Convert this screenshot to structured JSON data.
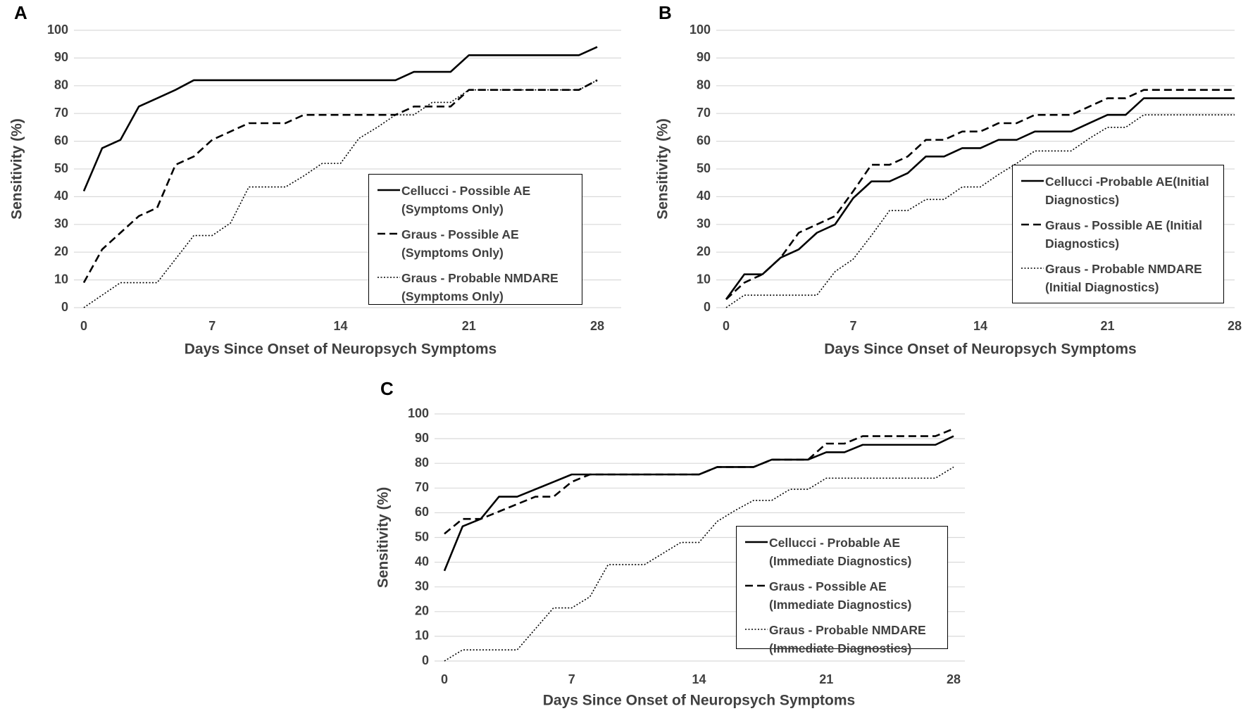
{
  "chart_data": [
    {
      "type": "line",
      "panel": "A",
      "xlabel": "Days Since Onset of Neuropsych Symptoms",
      "ylabel": "Sensitivity (%)",
      "x": [
        0,
        1,
        2,
        3,
        4,
        5,
        6,
        7,
        8,
        9,
        10,
        11,
        12,
        13,
        14,
        15,
        16,
        17,
        18,
        19,
        20,
        21,
        22,
        23,
        24,
        25,
        26,
        27,
        28
      ],
      "xlim": [
        0,
        28
      ],
      "xticks": [
        0,
        7,
        14,
        21,
        28
      ],
      "ylim": [
        0,
        100
      ],
      "yticks": [
        0,
        10,
        20,
        30,
        40,
        50,
        60,
        70,
        80,
        90,
        100
      ],
      "grid": true,
      "series": [
        {
          "name": "Cellucci - Possible AE (Symptoms Only)",
          "color": "#000000",
          "style": "solid",
          "values": [
            42,
            57.5,
            60.5,
            72.5,
            75.5,
            78.5,
            82,
            82,
            82,
            82,
            82,
            82,
            82,
            82,
            82,
            82,
            82,
            82,
            85,
            85,
            85,
            91,
            91,
            91,
            91,
            91,
            91,
            91,
            94
          ]
        },
        {
          "name": "Graus - Possible AE (Symptoms Only)",
          "color": "#000000",
          "style": "dashed",
          "values": [
            9,
            21,
            27,
            33,
            36,
            51.5,
            54.5,
            60.5,
            63.5,
            66.5,
            66.5,
            66.5,
            69.5,
            69.5,
            69.5,
            69.5,
            69.5,
            69.5,
            72.5,
            72.5,
            72.5,
            78.5,
            78.5,
            78.5,
            78.5,
            78.5,
            78.5,
            78.5,
            82
          ]
        },
        {
          "name": "Graus - Probable NMDARE (Symptoms Only)",
          "color": "#000000",
          "style": "dotted",
          "values": [
            0,
            4.5,
            9,
            9,
            9,
            17.5,
            26,
            26,
            30.5,
            43.5,
            43.5,
            43.5,
            47.5,
            52,
            52,
            61,
            65,
            69.5,
            69.5,
            74,
            74,
            78.5,
            78.5,
            78.5,
            78.5,
            78.5,
            78.5,
            78.5,
            82
          ]
        }
      ]
    },
    {
      "type": "line",
      "panel": "B",
      "xlabel": "Days Since Onset of Neuropsych Symptoms",
      "ylabel": "Sensitivity (%)",
      "x": [
        0,
        1,
        2,
        3,
        4,
        5,
        6,
        7,
        8,
        9,
        10,
        11,
        12,
        13,
        14,
        15,
        16,
        17,
        18,
        19,
        20,
        21,
        22,
        23,
        24,
        25,
        26,
        27,
        28
      ],
      "xlim": [
        0,
        28
      ],
      "xticks": [
        0,
        7,
        14,
        21,
        28
      ],
      "ylim": [
        0,
        100
      ],
      "yticks": [
        0,
        10,
        20,
        30,
        40,
        50,
        60,
        70,
        80,
        90,
        100
      ],
      "grid": true,
      "series": [
        {
          "name": "Cellucci -Probable AE(Initial Diagnostics)",
          "color": "#000000",
          "style": "solid",
          "values": [
            3,
            12,
            12,
            18,
            21,
            27,
            30,
            39.5,
            45.5,
            45.5,
            48.5,
            54.5,
            54.5,
            57.5,
            57.5,
            60.5,
            60.5,
            63.5,
            63.5,
            63.5,
            66.5,
            69.5,
            69.5,
            75.5,
            75.5,
            75.5,
            75.5,
            75.5,
            75.5
          ]
        },
        {
          "name": "Graus - Possible AE (Initial Diagnostics)",
          "color": "#000000",
          "style": "dashed",
          "values": [
            3,
            9,
            12,
            18,
            27,
            30,
            33,
            42,
            51.5,
            51.5,
            54.5,
            60.5,
            60.5,
            63.5,
            63.5,
            66.5,
            66.5,
            69.5,
            69.5,
            69.5,
            72.5,
            75.5,
            75.5,
            78.5,
            78.5,
            78.5,
            78.5,
            78.5,
            78.5
          ]
        },
        {
          "name": "Graus - Probable NMDARE (Initial Diagnostics)",
          "color": "#000000",
          "style": "dotted",
          "values": [
            0,
            4.5,
            4.5,
            4.5,
            4.5,
            4.5,
            13,
            17.5,
            26,
            35,
            35,
            39,
            39,
            43.5,
            43.5,
            48,
            52,
            56.5,
            56.5,
            56.5,
            61,
            65,
            65,
            69.5,
            69.5,
            69.5,
            69.5,
            69.5,
            69.5
          ]
        }
      ]
    },
    {
      "type": "line",
      "panel": "C",
      "xlabel": "Days Since Onset of Neuropsych Symptoms",
      "ylabel": "Sensitivity (%)",
      "x": [
        0,
        1,
        2,
        3,
        4,
        5,
        6,
        7,
        8,
        9,
        10,
        11,
        12,
        13,
        14,
        15,
        16,
        17,
        18,
        19,
        20,
        21,
        22,
        23,
        24,
        25,
        26,
        27,
        28
      ],
      "xlim": [
        0,
        28
      ],
      "xticks": [
        0,
        7,
        14,
        21,
        28
      ],
      "ylim": [
        0,
        100
      ],
      "yticks": [
        0,
        10,
        20,
        30,
        40,
        50,
        60,
        70,
        80,
        90,
        100
      ],
      "grid": true,
      "series": [
        {
          "name": "Cellucci - Probable AE (Immediate Diagnostics)",
          "color": "#000000",
          "style": "solid",
          "values": [
            36.5,
            54.5,
            57.5,
            66.5,
            66.5,
            69.5,
            72.5,
            75.5,
            75.5,
            75.5,
            75.5,
            75.5,
            75.5,
            75.5,
            75.5,
            78.5,
            78.5,
            78.5,
            81.5,
            81.5,
            81.5,
            84.5,
            84.5,
            87.5,
            87.5,
            87.5,
            87.5,
            87.5,
            91
          ]
        },
        {
          "name": "Graus - Possible AE (Immediate Diagnostics)",
          "color": "#000000",
          "style": "dashed",
          "values": [
            51.5,
            57.5,
            57.5,
            60.5,
            63.5,
            66.5,
            66.5,
            72.5,
            75.5,
            75.5,
            75.5,
            75.5,
            75.5,
            75.5,
            75.5,
            78.5,
            78.5,
            78.5,
            81.5,
            81.5,
            81.5,
            88,
            88,
            91,
            91,
            91,
            91,
            91,
            94
          ]
        },
        {
          "name": "Graus - Probable NMDARE (Immediate Diagnostics)",
          "color": "#000000",
          "style": "dotted",
          "values": [
            0,
            4.5,
            4.5,
            4.5,
            4.5,
            13,
            21.5,
            21.5,
            26,
            39,
            39,
            39,
            43.5,
            48,
            48,
            56.5,
            61,
            65,
            65,
            69.5,
            69.5,
            74,
            74,
            74,
            74,
            74,
            74,
            74,
            78.5
          ]
        }
      ]
    }
  ]
}
